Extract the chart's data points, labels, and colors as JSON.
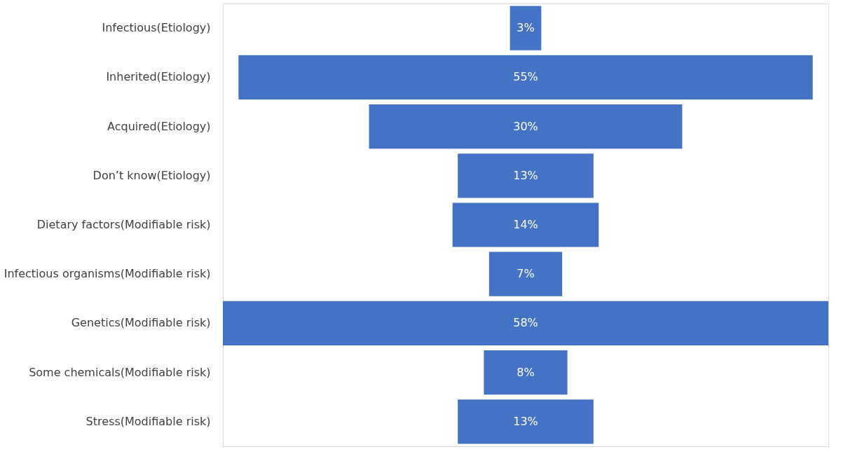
{
  "chart_data": {
    "type": "other",
    "categories": [
      "Infectious(Etiology)",
      "Inherited(Etiology)",
      "Acquired(Etiology)",
      "Don’t know(Etiology)",
      "Dietary factors(Modifiable risk)",
      "Infectious organisms(Modifiable risk)",
      "Genetics(Modifiable risk)",
      "Some chemicals(Modifiable risk)",
      "Stress(Modifiable risk)"
    ],
    "values": [
      3,
      55,
      30,
      13,
      14,
      7,
      58,
      8,
      13
    ],
    "value_labels": [
      "3%",
      "55%",
      "30%",
      "13%",
      "14%",
      "7%",
      "58%",
      "8%",
      "13%"
    ],
    "color": "#4472c4"
  }
}
